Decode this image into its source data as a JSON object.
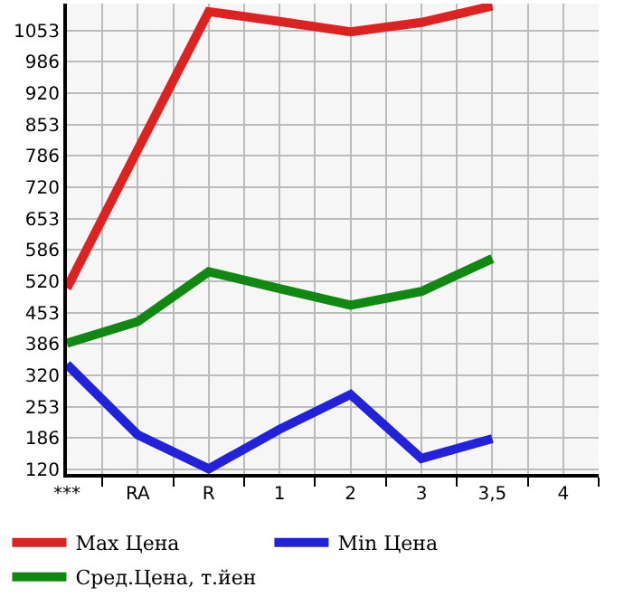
{
  "chart_data": {
    "type": "line",
    "categories": [
      "***",
      "RA",
      "R",
      "1",
      "2",
      "3",
      "3,5",
      "4"
    ],
    "series": [
      {
        "name": "Max Цена",
        "color": "#dd2222",
        "values": [
          505,
          800,
          1093,
          1072,
          1050,
          1070,
          1105,
          null
        ]
      },
      {
        "name": "Min Цена",
        "color": "#2222dd",
        "values": [
          343,
          193,
          121,
          205,
          279,
          143,
          185,
          null
        ]
      },
      {
        "name": "Сред.Цена, т.йен",
        "color": "#118811",
        "values": [
          388,
          434,
          540,
          504,
          469,
          498,
          568,
          null
        ]
      }
    ],
    "ylim": [
      110,
      1110
    ],
    "yticks": [
      120,
      186,
      253,
      320,
      386,
      453,
      520,
      586,
      653,
      720,
      786,
      853,
      920,
      986,
      1053
    ],
    "grid": true,
    "legend": "bottom",
    "marker": "none",
    "line_style": "solid"
  }
}
